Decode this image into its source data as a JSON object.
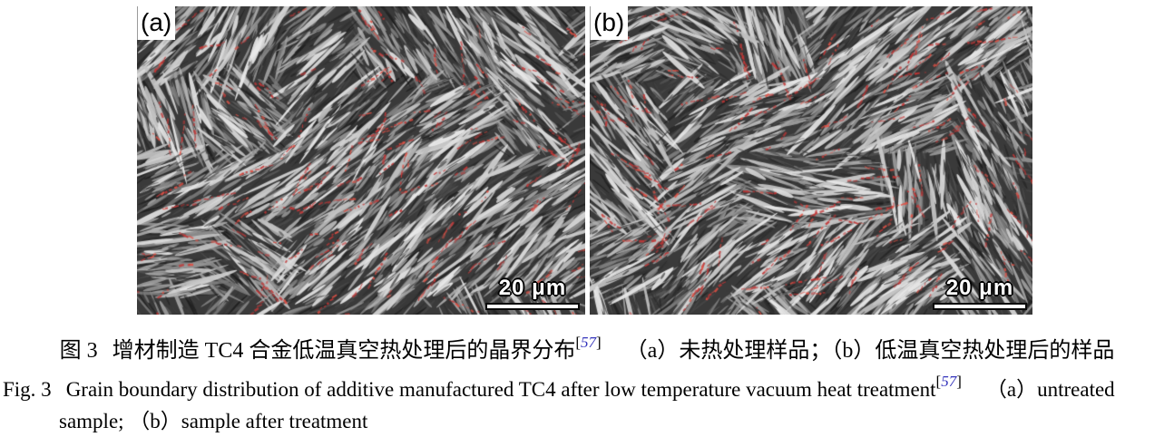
{
  "figure": {
    "panels": [
      {
        "label": "(a)",
        "scale_bar_text": "20 μm"
      },
      {
        "label": "(b)",
        "scale_bar_text": "20 μm"
      }
    ],
    "caption_zh": {
      "fig_no": "图 3",
      "title": "增材制造 TC4 合金低温真空热处理后的晶界分布",
      "ref_open": "[",
      "ref_num": "57",
      "ref_close": "]",
      "subcaption": "（a）未热处理样品；（b）低温真空热处理后的样品"
    },
    "caption_en": {
      "fig_no": "Fig. 3",
      "title": "Grain boundary distribution of additive manufactured TC4 after low temperature vacuum heat treatment",
      "ref_open": "[",
      "ref_num": "57",
      "ref_close": "]",
      "line1_tail": "（a）untreated",
      "line2": "sample; （b）sample after treatment"
    },
    "colors": {
      "reference_blue": "#3333bb",
      "grain_boundary_red": "#c23535",
      "lath_bright_gray": "#d0d0d0",
      "matrix_dark_gray": "#3a3a3a"
    }
  }
}
